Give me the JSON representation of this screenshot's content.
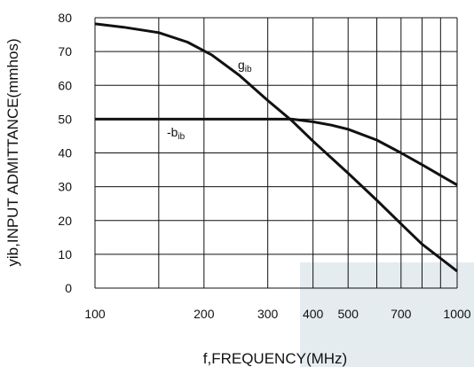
{
  "chart_data": {
    "type": "line",
    "xscale": "log",
    "xlim": [
      100,
      1000
    ],
    "ylim": [
      0,
      80
    ],
    "grid": true,
    "xlabel": "f,FREQUENCY(MHz)",
    "ylabel": "yib,INPUT ADMITTANCE(mmhos)",
    "x_ticks": [
      100,
      200,
      300,
      400,
      500,
      700,
      1000
    ],
    "x_tick_labels": [
      "100",
      "200",
      "300",
      "400",
      "500",
      "700",
      "1000"
    ],
    "x_grid": [
      100,
      150,
      200,
      300,
      400,
      500,
      600,
      700,
      800,
      900,
      1000
    ],
    "y_ticks": [
      0,
      10,
      20,
      30,
      40,
      50,
      60,
      70,
      80
    ],
    "y_tick_labels": [
      "0",
      "10",
      "20",
      "30",
      "40",
      "50",
      "60",
      "70",
      "80"
    ],
    "series": [
      {
        "name_main": "g",
        "name_sub": "ib",
        "x": [
          100,
          120,
          150,
          180,
          210,
          250,
          300,
          350,
          400,
          500,
          600,
          700,
          800,
          1000
        ],
        "y": [
          78.2,
          77.2,
          75.6,
          72.8,
          69,
          63,
          55.5,
          49.5,
          43.5,
          34,
          26,
          19,
          13,
          5
        ]
      },
      {
        "name_main": "-b",
        "name_sub": "ib",
        "x": [
          100,
          200,
          300,
          350,
          400,
          450,
          500,
          600,
          700,
          800,
          1000
        ],
        "y": [
          50,
          50,
          50,
          50,
          49.2,
          48.2,
          47,
          43.8,
          40,
          36.5,
          30.5
        ]
      }
    ],
    "colors": {
      "line": "#111111",
      "grid": "#111111",
      "watermark": "#e4ecef"
    }
  }
}
